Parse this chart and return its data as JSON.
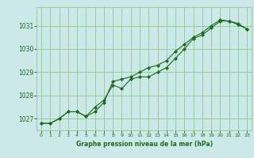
{
  "title": "Graphe pression niveau de la mer (hPa)",
  "bg_color": "#cce8e8",
  "line_color": "#1a6b1a",
  "marker_color": "#1a6b1a",
  "grid_color": "#99cc99",
  "tick_label_color": "#1a6b1a",
  "xlabel_color": "#1a6b1a",
  "ylim": [
    1026.5,
    1031.8
  ],
  "xlim": [
    -0.5,
    23.5
  ],
  "yticks": [
    1027,
    1028,
    1029,
    1030,
    1031
  ],
  "xticks": [
    0,
    1,
    2,
    3,
    4,
    5,
    6,
    7,
    8,
    9,
    10,
    11,
    12,
    13,
    14,
    15,
    16,
    17,
    18,
    19,
    20,
    21,
    22,
    23
  ],
  "series1_x": [
    0,
    1,
    2,
    3,
    4,
    5,
    6,
    7,
    8,
    9,
    10,
    11,
    12,
    13,
    14,
    15,
    16,
    17,
    18,
    19,
    20,
    21,
    22,
    23
  ],
  "series1_y": [
    1026.8,
    1026.8,
    1027.0,
    1027.3,
    1027.3,
    1027.1,
    1027.3,
    1027.7,
    1028.6,
    1028.7,
    1028.8,
    1029.0,
    1029.2,
    1029.3,
    1029.5,
    1029.9,
    1030.2,
    1030.5,
    1030.7,
    1031.0,
    1031.25,
    1031.2,
    1031.05,
    1030.85
  ],
  "series2_x": [
    0,
    1,
    2,
    3,
    4,
    5,
    6,
    7,
    8,
    9,
    10,
    11,
    12,
    13,
    14,
    15,
    16,
    17,
    18,
    19,
    20,
    21,
    22,
    23
  ],
  "series2_y": [
    1026.8,
    1026.8,
    1027.0,
    1027.3,
    1027.3,
    1027.1,
    1027.5,
    1027.8,
    1028.45,
    1028.3,
    1028.7,
    1028.8,
    1028.8,
    1029.0,
    1029.2,
    1029.6,
    1030.0,
    1030.45,
    1030.6,
    1030.9,
    1031.2,
    1031.2,
    1031.1,
    1030.85
  ]
}
